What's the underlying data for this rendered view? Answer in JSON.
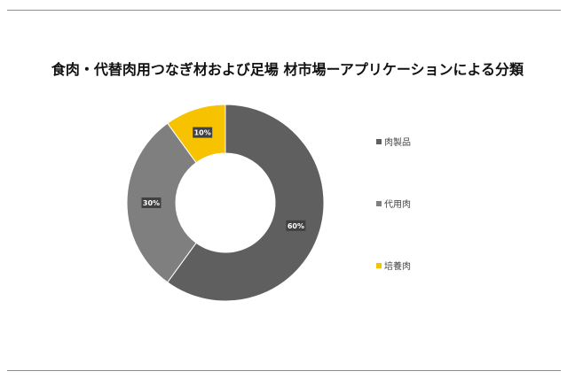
{
  "chart_data": {
    "type": "pie",
    "title": "食肉・代替肉用つなぎ材および足場 材市場ーアプリケーションによる分類",
    "categories": [
      "肉製品",
      "代用肉",
      "培養肉"
    ],
    "values": [
      60,
      30,
      10
    ],
    "data_labels": [
      "60%",
      "30%",
      "10%"
    ],
    "colors": [
      "#5f5f5f",
      "#7f7f7f",
      "#f7c200"
    ],
    "legend_placement": "right"
  }
}
